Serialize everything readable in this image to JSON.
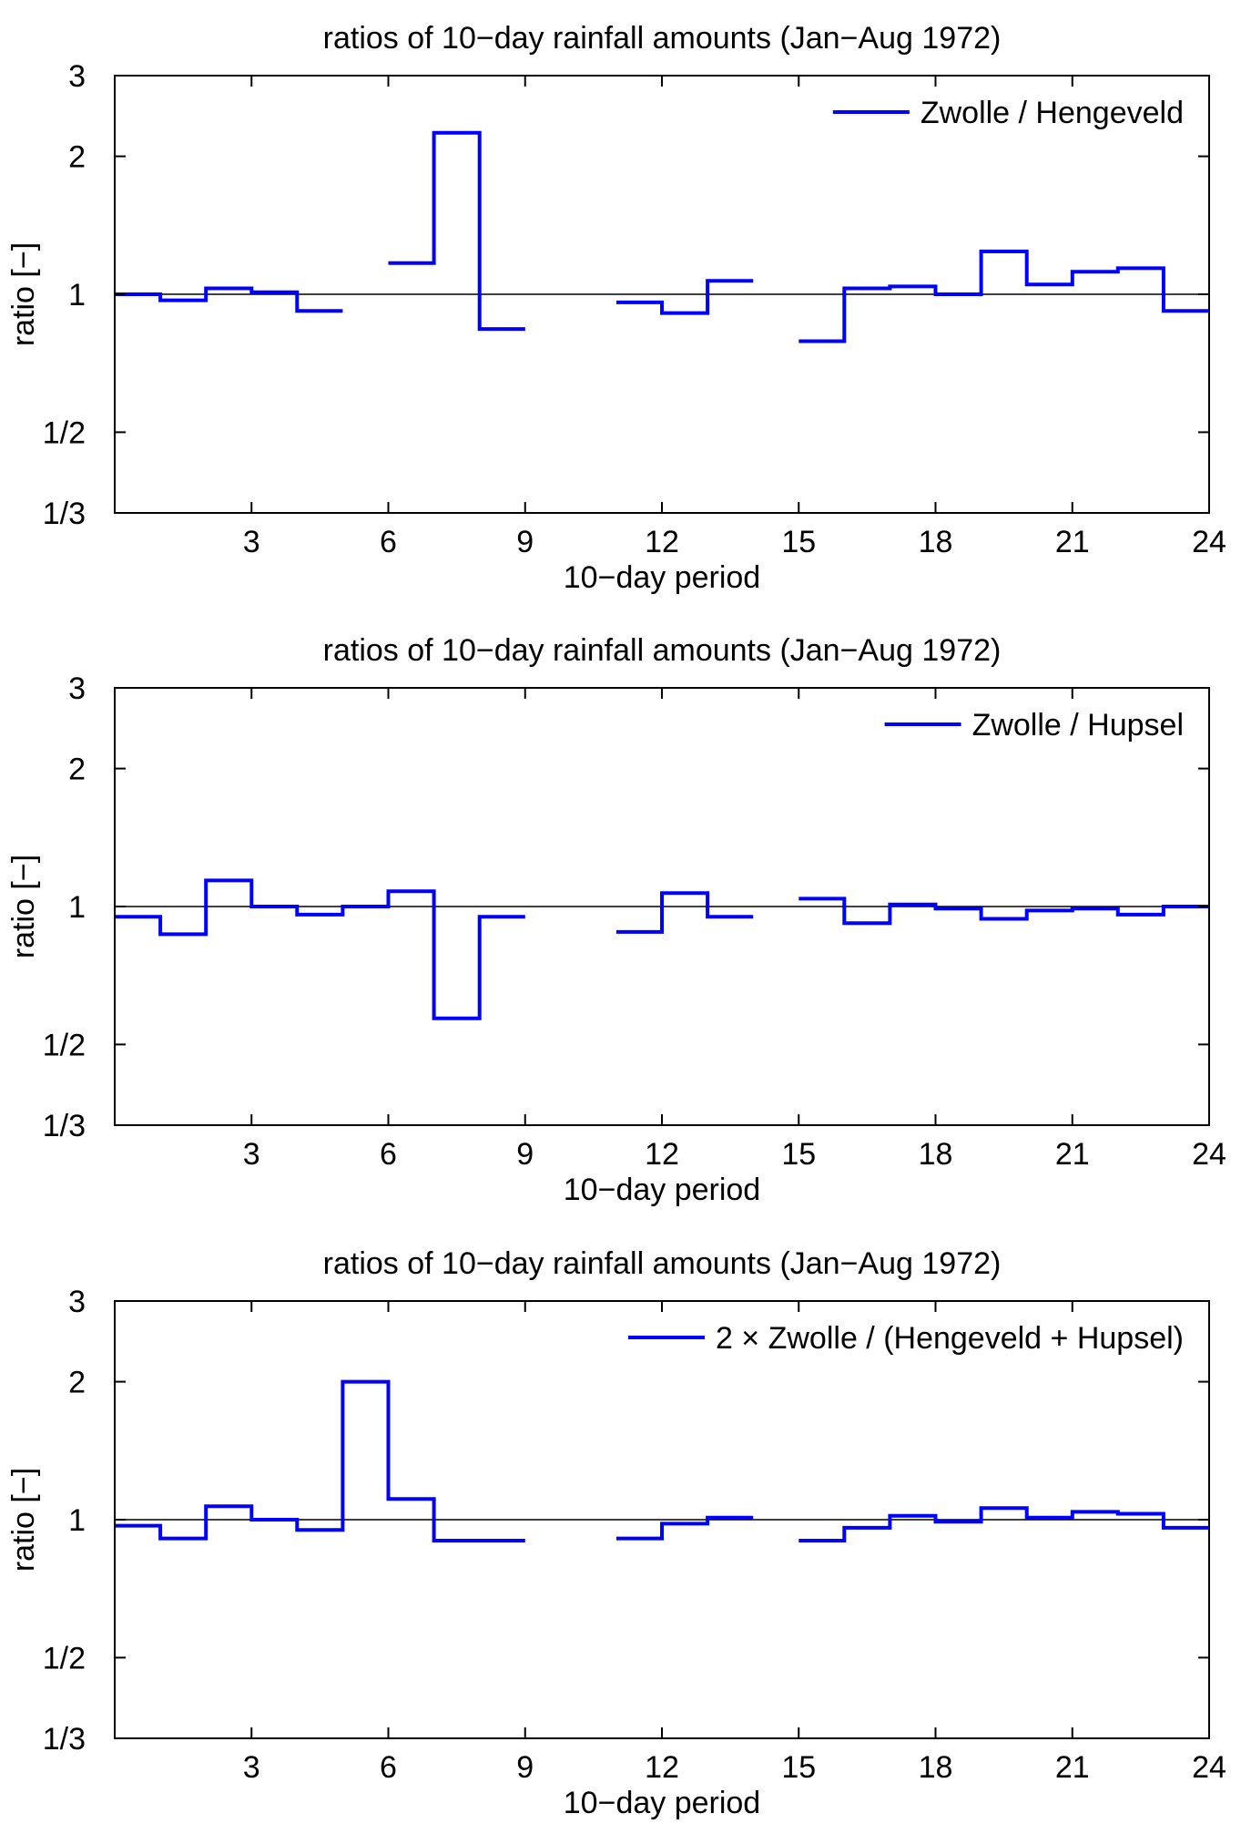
{
  "chart_data": [
    {
      "type": "line",
      "title": "ratios of 10−day rainfall amounts (Jan−Aug 1972)",
      "xlabel": "10−day period",
      "ylabel": "ratio [−]",
      "xlim": [
        0,
        24
      ],
      "ylim": [
        0.3333,
        3
      ],
      "yscale": "log",
      "xticks": [
        3,
        6,
        9,
        12,
        15,
        18,
        21,
        24
      ],
      "yticks": [
        0.3333,
        0.5,
        1,
        2,
        3
      ],
      "ytick_labels": [
        "1/3",
        "1/2",
        "1",
        "2",
        "3"
      ],
      "reference_line": 1,
      "legend": "top-right",
      "series": [
        {
          "name": "Zwolle / Hengeveld",
          "color": "#0000ff",
          "style": "step",
          "values": [
            1.0,
            0.97,
            1.03,
            1.01,
            0.92,
            null,
            1.17,
            2.25,
            0.84,
            null,
            null,
            0.96,
            0.91,
            1.07,
            null,
            0.79,
            1.03,
            1.04,
            1.0,
            1.24,
            1.05,
            1.12,
            1.14,
            0.92
          ]
        }
      ]
    },
    {
      "type": "line",
      "title": "ratios of 10−day rainfall amounts (Jan−Aug 1972)",
      "xlabel": "10−day period",
      "ylabel": "ratio [−]",
      "xlim": [
        0,
        24
      ],
      "ylim": [
        0.3333,
        3
      ],
      "yscale": "log",
      "xticks": [
        3,
        6,
        9,
        12,
        15,
        18,
        21,
        24
      ],
      "yticks": [
        0.3333,
        0.5,
        1,
        2,
        3
      ],
      "ytick_labels": [
        "1/3",
        "1/2",
        "1",
        "2",
        "3"
      ],
      "reference_line": 1,
      "legend": "top-right",
      "series": [
        {
          "name": "Zwolle / Hupsel",
          "color": "#0000ff",
          "style": "step",
          "values": [
            0.95,
            0.87,
            1.14,
            1.0,
            0.96,
            1.0,
            1.08,
            0.57,
            0.95,
            null,
            null,
            0.88,
            1.07,
            0.95,
            null,
            1.04,
            0.92,
            1.01,
            0.99,
            0.94,
            0.98,
            0.99,
            0.96,
            1.0
          ]
        }
      ]
    },
    {
      "type": "line",
      "title": "ratios of 10−day rainfall amounts (Jan−Aug 1972)",
      "xlabel": "10−day period",
      "ylabel": "ratio [−]",
      "xlim": [
        0,
        24
      ],
      "ylim": [
        0.3333,
        3
      ],
      "yscale": "log",
      "xticks": [
        3,
        6,
        9,
        12,
        15,
        18,
        21,
        24
      ],
      "yticks": [
        0.3333,
        0.5,
        1,
        2,
        3
      ],
      "ytick_labels": [
        "1/3",
        "1/2",
        "1",
        "2",
        "3"
      ],
      "reference_line": 1,
      "legend": "top-right",
      "series": [
        {
          "name": "2 × Zwolle / (Hengeveld + Hupsel)",
          "color": "#0000ff",
          "style": "step",
          "values": [
            0.97,
            0.91,
            1.07,
            1.0,
            0.95,
            2.0,
            1.11,
            0.9,
            0.9,
            null,
            null,
            0.91,
            0.98,
            1.01,
            null,
            0.9,
            0.96,
            1.02,
            0.99,
            1.06,
            1.01,
            1.04,
            1.03,
            0.96
          ]
        }
      ]
    }
  ]
}
